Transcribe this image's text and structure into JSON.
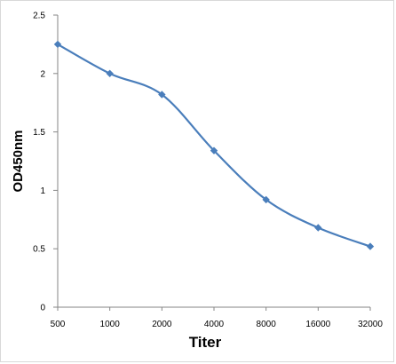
{
  "chart_data": {
    "type": "line",
    "title": "",
    "xlabel": "Titer",
    "ylabel": "OD450nm",
    "categories": [
      "500",
      "1000",
      "2000",
      "4000",
      "8000",
      "16000",
      "32000"
    ],
    "series": [
      {
        "values": [
          2.25,
          2.0,
          1.82,
          1.34,
          0.92,
          0.68,
          0.52
        ]
      }
    ],
    "ylim": [
      0,
      2.5
    ],
    "yticks": [
      "0",
      "0.5",
      "1",
      "1.5",
      "2",
      "2.5"
    ],
    "grid": false,
    "legend": "none",
    "line_color": "#4a7ebb",
    "marker": "diamond"
  }
}
